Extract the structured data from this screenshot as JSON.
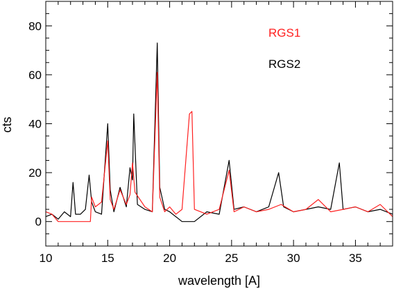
{
  "chart_data": {
    "type": "line",
    "title": "",
    "xlabel": "wavelength [A]",
    "ylabel": "cts",
    "xlim": [
      10,
      38
    ],
    "ylim": [
      -10,
      90
    ],
    "x_ticks": [
      10,
      15,
      20,
      25,
      30,
      35
    ],
    "y_ticks": [
      0,
      20,
      40,
      60,
      80
    ],
    "grid": false,
    "legend_position": "top-right",
    "series": [
      {
        "name": "RGS2",
        "color": "#000000",
        "points": [
          [
            10.0,
            2
          ],
          [
            10.5,
            3
          ],
          [
            11.0,
            1
          ],
          [
            11.5,
            4
          ],
          [
            12.0,
            2
          ],
          [
            12.2,
            16
          ],
          [
            12.4,
            3
          ],
          [
            12.8,
            3
          ],
          [
            13.2,
            5
          ],
          [
            13.5,
            19
          ],
          [
            13.7,
            8
          ],
          [
            14.0,
            4
          ],
          [
            14.5,
            3
          ],
          [
            15.0,
            40
          ],
          [
            15.2,
            13
          ],
          [
            15.5,
            4
          ],
          [
            16.0,
            14
          ],
          [
            16.5,
            6
          ],
          [
            16.8,
            22
          ],
          [
            17.0,
            17
          ],
          [
            17.1,
            44
          ],
          [
            17.4,
            7
          ],
          [
            18.0,
            5
          ],
          [
            18.6,
            4
          ],
          [
            19.0,
            73
          ],
          [
            19.2,
            14
          ],
          [
            19.6,
            5
          ],
          [
            20.0,
            4
          ],
          [
            21.0,
            0
          ],
          [
            21.6,
            0
          ],
          [
            22.0,
            0
          ],
          [
            23.0,
            4
          ],
          [
            24.0,
            3
          ],
          [
            24.8,
            25
          ],
          [
            25.2,
            5
          ],
          [
            26.0,
            6
          ],
          [
            27.0,
            4
          ],
          [
            28.0,
            6
          ],
          [
            28.8,
            20
          ],
          [
            29.2,
            6
          ],
          [
            30.0,
            4
          ],
          [
            31.0,
            5
          ],
          [
            32.0,
            6
          ],
          [
            33.0,
            5
          ],
          [
            33.7,
            24
          ],
          [
            34.0,
            5
          ],
          [
            35.0,
            6
          ],
          [
            36.0,
            4
          ],
          [
            37.0,
            5
          ],
          [
            38.0,
            3
          ]
        ]
      },
      {
        "name": "RGS1",
        "color": "#ff2020",
        "points": [
          [
            10.0,
            4
          ],
          [
            10.5,
            3
          ],
          [
            11.0,
            0
          ],
          [
            12.0,
            0
          ],
          [
            13.0,
            0
          ],
          [
            13.6,
            0
          ],
          [
            13.7,
            10
          ],
          [
            14.0,
            6
          ],
          [
            14.5,
            8
          ],
          [
            15.0,
            33
          ],
          [
            15.2,
            9
          ],
          [
            15.5,
            5
          ],
          [
            16.0,
            13
          ],
          [
            16.5,
            7
          ],
          [
            16.8,
            11
          ],
          [
            17.0,
            24
          ],
          [
            17.2,
            12
          ],
          [
            18.0,
            6
          ],
          [
            18.6,
            4
          ],
          [
            19.0,
            61
          ],
          [
            19.2,
            10
          ],
          [
            19.6,
            4
          ],
          [
            20.0,
            6
          ],
          [
            20.5,
            3
          ],
          [
            21.0,
            5
          ],
          [
            21.6,
            44
          ],
          [
            21.8,
            45
          ],
          [
            22.0,
            5
          ],
          [
            23.0,
            3
          ],
          [
            24.0,
            5
          ],
          [
            24.8,
            21
          ],
          [
            25.2,
            4
          ],
          [
            26.0,
            6
          ],
          [
            27.0,
            4
          ],
          [
            28.0,
            5
          ],
          [
            29.0,
            7
          ],
          [
            30.0,
            4
          ],
          [
            31.0,
            5
          ],
          [
            32.0,
            9
          ],
          [
            33.0,
            4
          ],
          [
            34.0,
            5
          ],
          [
            35.0,
            6
          ],
          [
            36.0,
            4
          ],
          [
            37.0,
            7
          ],
          [
            38.0,
            2
          ]
        ]
      }
    ]
  }
}
